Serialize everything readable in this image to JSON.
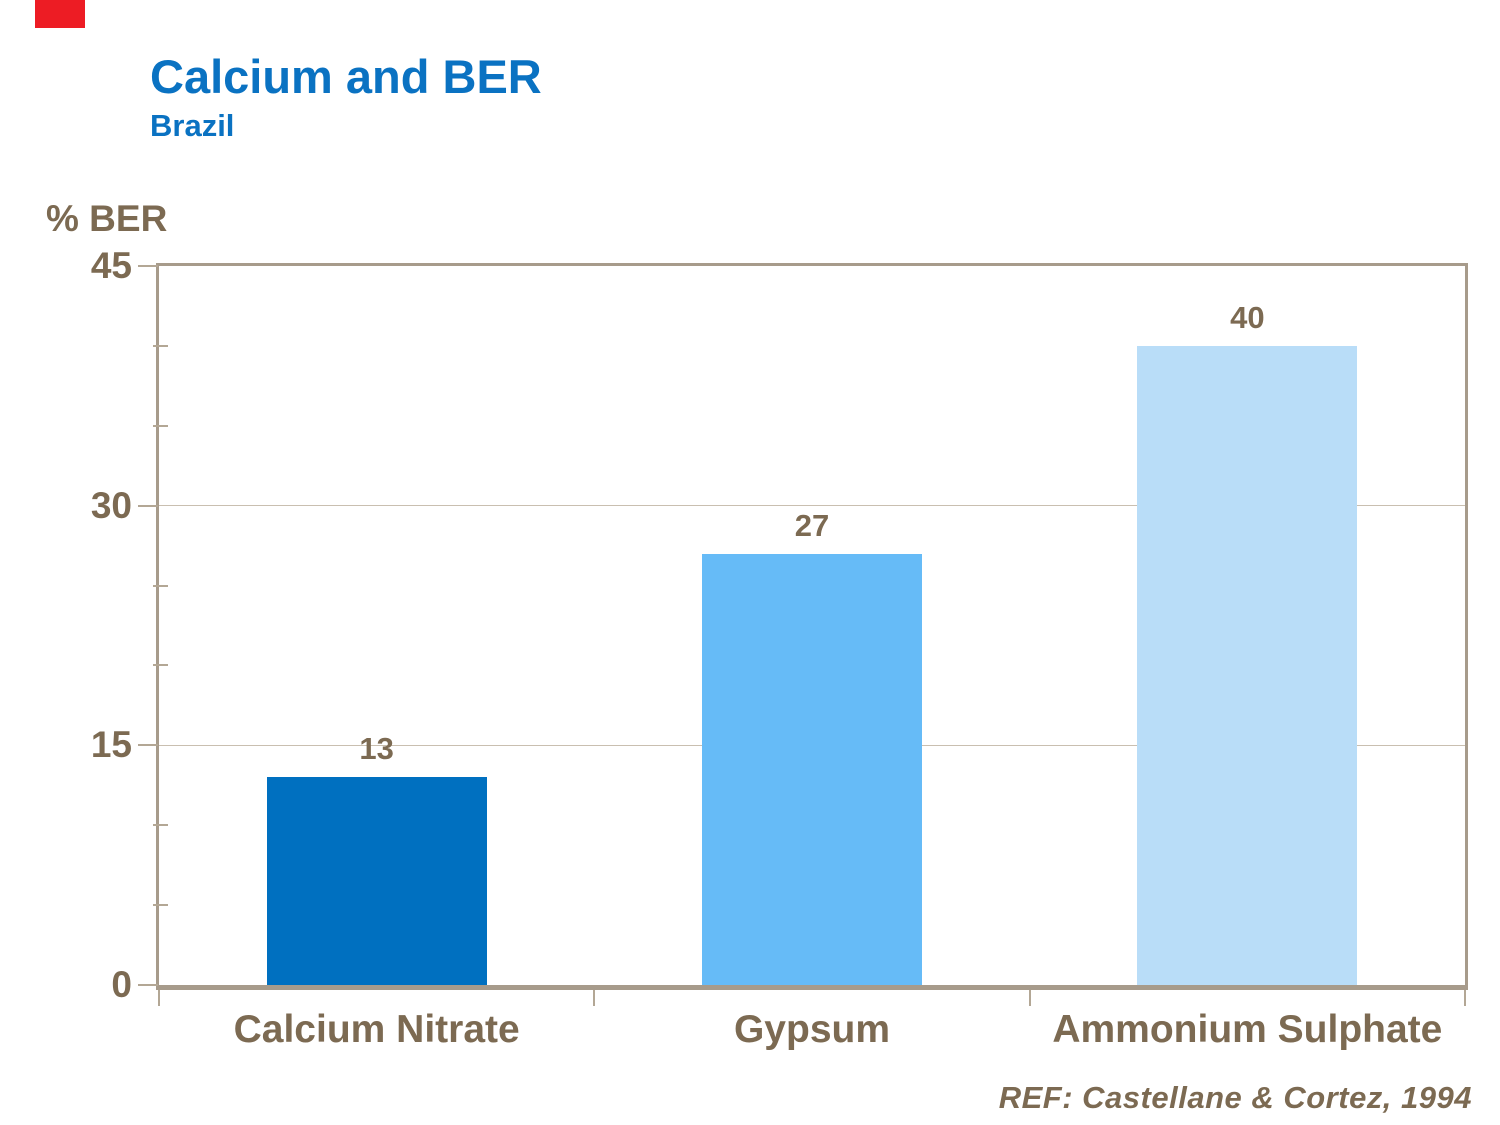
{
  "page": {
    "title": "Calcium and BER",
    "subtitle": "Brazil",
    "reference": "REF: Castellane & Cortez, 1994"
  },
  "decor": {
    "red_block_color": "#ED1C24"
  },
  "colors": {
    "title_blue": "#0A72C2",
    "text_brown": "#7C6A52",
    "axis_tan": "#A79B8B",
    "grid_tan": "#C9BFB0",
    "tick_tan": "#B3A795"
  },
  "chart_data": {
    "type": "bar",
    "title": "Calcium and BER",
    "subtitle": "Brazil",
    "ylabel": "% BER",
    "xlabel": "",
    "categories": [
      "Calcium Nitrate",
      "Gypsum",
      "Ammonium Sulphate"
    ],
    "values": [
      13,
      27,
      40
    ],
    "value_labels": [
      "13",
      "27",
      "40"
    ],
    "bar_colors": [
      "#0070C0",
      "#66BBF7",
      "#B9DDF8"
    ],
    "ylim": [
      0,
      45
    ],
    "yticks": [
      0,
      15,
      30,
      45
    ],
    "ytick_labels": [
      "0",
      "15",
      "30",
      "45"
    ],
    "minor_tick_step": 5,
    "grid": true,
    "legend": false,
    "reference": "REF: Castellane & Cortez, 1994"
  }
}
